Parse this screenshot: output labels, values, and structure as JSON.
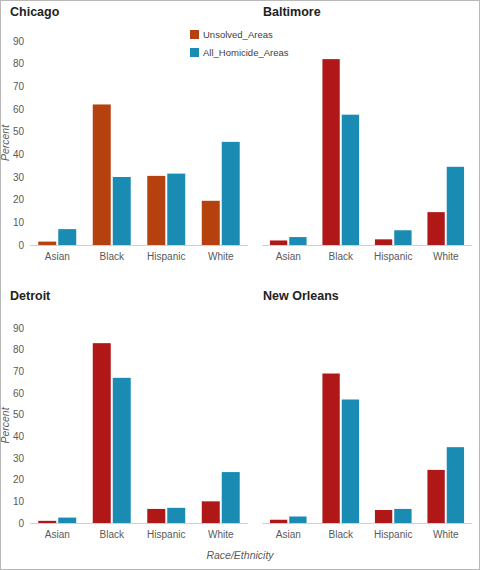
{
  "x_label": "Race/Ethnicity",
  "chart_data": [
    {
      "type": "bar",
      "title": "Chicago",
      "categories": [
        "Asian",
        "Black",
        "Hispanic",
        "White"
      ],
      "series": [
        {
          "name": "Unsolved_Areas",
          "color": "#b5420e",
          "values": [
            1.5,
            62,
            30.5,
            19.5
          ]
        },
        {
          "name": "All_Homicide_Areas",
          "color": "#1a8cb4",
          "values": [
            7,
            30,
            31.5,
            45.5
          ]
        }
      ],
      "y_label": "Percent",
      "ylim": [
        0,
        90
      ],
      "yticks": [
        0,
        10,
        20,
        30,
        40,
        50,
        60,
        70,
        80,
        90
      ],
      "grid": false,
      "legend": "top"
    },
    {
      "type": "bar",
      "title": "Baltimore",
      "categories": [
        "Asian",
        "Black",
        "Hispanic",
        "White"
      ],
      "series": [
        {
          "name": "Unsolved_Areas",
          "color": "#b01818",
          "values": [
            2,
            82,
            2.5,
            14.5
          ]
        },
        {
          "name": "All_Homicide_Areas",
          "color": "#1a8cb4",
          "values": [
            3.5,
            57.5,
            6.5,
            34.5
          ]
        }
      ],
      "ylim": [
        0,
        90
      ],
      "yticks": [
        0,
        10,
        20,
        30,
        40,
        50,
        60,
        70,
        80,
        90
      ],
      "grid": false,
      "tick_labels": "x"
    },
    {
      "type": "bar",
      "title": "Detroit",
      "categories": [
        "Asian",
        "Black",
        "Hispanic",
        "White"
      ],
      "series": [
        {
          "name": "Unsolved_Areas",
          "color": "#b01818",
          "values": [
            1,
            83,
            6.5,
            10
          ]
        },
        {
          "name": "All_Homicide_Areas",
          "color": "#1a8cb4",
          "values": [
            2.5,
            67,
            7,
            23.5
          ]
        }
      ],
      "y_label": "Percent",
      "ylim": [
        0,
        90
      ],
      "yticks": [
        0,
        10,
        20,
        30,
        40,
        50,
        60,
        70,
        80,
        90
      ],
      "grid": false
    },
    {
      "type": "bar",
      "title": "New Orleans",
      "categories": [
        "Asian",
        "Black",
        "Hispanic",
        "White"
      ],
      "series": [
        {
          "name": "Unsolved_Areas",
          "color": "#b01818",
          "values": [
            1.5,
            69,
            6,
            24.5
          ]
        },
        {
          "name": "All_Homicide_Areas",
          "color": "#1a8cb4",
          "values": [
            3,
            57,
            6.5,
            35
          ]
        }
      ],
      "ylim": [
        0,
        90
      ],
      "yticks": [
        0,
        10,
        20,
        30,
        40,
        50,
        60,
        70,
        80,
        90
      ],
      "grid": false,
      "tick_labels": "x"
    }
  ]
}
